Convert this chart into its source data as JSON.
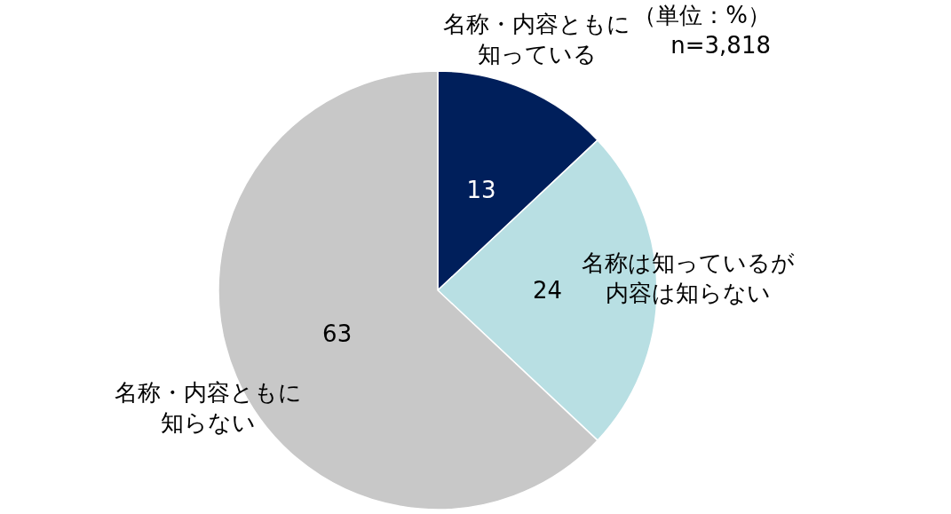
{
  "chart_data": {
    "type": "pie",
    "categories": [
      "名称・内容ともに知っている",
      "名称は知っているが内容は知らない",
      "名称・内容ともに知らない"
    ],
    "values": [
      13,
      24,
      63
    ],
    "colors": [
      "#001f5b",
      "#b8dfe3",
      "#c8c8c8"
    ],
    "data_labels": true,
    "annotations": [
      "（単位：%）",
      "n=3,818"
    ]
  }
}
